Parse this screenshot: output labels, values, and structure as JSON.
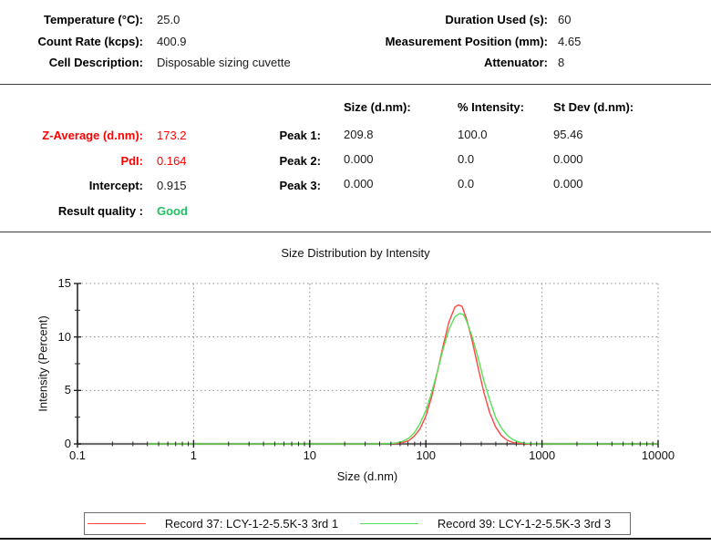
{
  "colors": {
    "alert_red": "#ff0000",
    "good_green": "#1fc05f",
    "series_red": "#ff4545",
    "series_green": "#57e057"
  },
  "header": {
    "left": [
      {
        "label": "Temperature (°C):",
        "value": "25.0"
      },
      {
        "label": "Count Rate (kcps):",
        "value": "400.9"
      },
      {
        "label": "Cell Description:",
        "value": "Disposable sizing cuvette"
      }
    ],
    "right": [
      {
        "label": "Duration Used (s):",
        "value": "60"
      },
      {
        "label": "Measurement Position (mm):",
        "value": "4.65"
      },
      {
        "label": "Attenuator:",
        "value": "8"
      }
    ]
  },
  "results": {
    "summary": [
      {
        "label": "Z-Average (d.nm):",
        "value": "173.2"
      },
      {
        "label": "PdI:",
        "value": "0.164"
      },
      {
        "label": "Intercept:",
        "value": "0.915"
      },
      {
        "label": "Result quality :",
        "value": "Good"
      }
    ],
    "table": {
      "columns": [
        "Size (d.nm):",
        "% Intensity:",
        "St Dev (d.nm):"
      ],
      "rows": [
        {
          "label": "Peak 1:",
          "values": [
            "209.8",
            "100.0",
            "95.46"
          ]
        },
        {
          "label": "Peak 2:",
          "values": [
            "0.000",
            "0.0",
            "0.000"
          ]
        },
        {
          "label": "Peak 3:",
          "values": [
            "0.000",
            "0.0",
            "0.000"
          ]
        }
      ]
    }
  },
  "chart_data": {
    "type": "line",
    "title": "Size Distribution by Intensity",
    "xlabel": "Size (d.nm)",
    "ylabel": "Intensity (Percent)",
    "x_scale": "log",
    "xlim": [
      0.1,
      10000
    ],
    "ylim": [
      0,
      15
    ],
    "x_ticks": [
      0.1,
      1,
      10,
      100,
      1000,
      10000
    ],
    "y_ticks": [
      0,
      5,
      10,
      15
    ],
    "y_minor_ticks": [
      2.5,
      7.5,
      12.5
    ],
    "grid": "dotted",
    "legend_position": "bottom",
    "series": [
      {
        "name": "Record 37: LCY-1-2-5.5K-3 3rd 1",
        "color": "#ff4545",
        "peak_dnm": 190,
        "peak_intensity": 13.0,
        "points": [
          [
            0.4,
            0
          ],
          [
            40,
            0
          ],
          [
            56,
            0.04
          ],
          [
            63,
            0.12
          ],
          [
            71,
            0.3
          ],
          [
            79,
            0.7
          ],
          [
            89,
            1.4
          ],
          [
            100,
            2.6
          ],
          [
            112,
            4.4
          ],
          [
            126,
            6.8
          ],
          [
            141,
            9.2
          ],
          [
            158,
            11.4
          ],
          [
            178,
            12.8
          ],
          [
            190,
            13.0
          ],
          [
            205,
            12.85
          ],
          [
            224,
            11.7
          ],
          [
            251,
            9.6
          ],
          [
            282,
            7.1
          ],
          [
            316,
            4.8
          ],
          [
            355,
            2.9
          ],
          [
            398,
            1.6
          ],
          [
            447,
            0.78
          ],
          [
            501,
            0.34
          ],
          [
            562,
            0.14
          ],
          [
            631,
            0.05
          ],
          [
            708,
            0.01
          ],
          [
            750,
            0
          ],
          [
            10000,
            0
          ]
        ]
      },
      {
        "name": "Record 39: LCY-1-2-5.5K-3 3rd 3",
        "color": "#57e057",
        "peak_dnm": 195,
        "peak_intensity": 12.2,
        "points": [
          [
            0.4,
            0
          ],
          [
            40,
            0
          ],
          [
            50,
            0.04
          ],
          [
            56,
            0.1
          ],
          [
            63,
            0.24
          ],
          [
            71,
            0.52
          ],
          [
            79,
            1.0
          ],
          [
            89,
            1.9
          ],
          [
            100,
            3.1
          ],
          [
            112,
            4.8
          ],
          [
            126,
            6.8
          ],
          [
            141,
            8.9
          ],
          [
            158,
            10.7
          ],
          [
            178,
            11.9
          ],
          [
            195,
            12.2
          ],
          [
            210,
            12.1
          ],
          [
            224,
            11.5
          ],
          [
            251,
            10.0
          ],
          [
            282,
            8.0
          ],
          [
            316,
            5.9
          ],
          [
            355,
            4.1
          ],
          [
            398,
            2.5
          ],
          [
            447,
            1.5
          ],
          [
            501,
            0.8
          ],
          [
            562,
            0.4
          ],
          [
            631,
            0.17
          ],
          [
            708,
            0.07
          ],
          [
            794,
            0.02
          ],
          [
            891,
            0
          ],
          [
            10000,
            0
          ]
        ]
      }
    ]
  }
}
